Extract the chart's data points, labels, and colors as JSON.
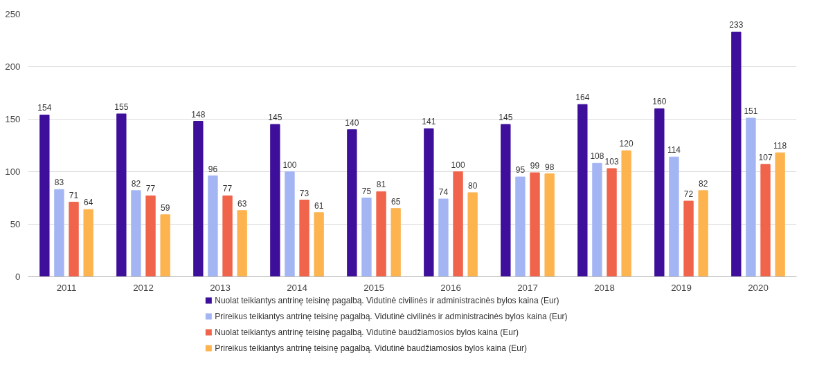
{
  "chart_data": {
    "type": "bar",
    "categories": [
      "2011",
      "2012",
      "2013",
      "2014",
      "2015",
      "2016",
      "2017",
      "2018",
      "2019",
      "2020"
    ],
    "series": [
      {
        "name": "Nuolat teikiantys antrinę teisinę pagalbą. Vidutinė civilinės ir administracinės bylos kaina (Eur)",
        "color": "#3e0f9a",
        "values": [
          154,
          155,
          148,
          145,
          140,
          141,
          145,
          164,
          160,
          233
        ]
      },
      {
        "name": "Prireikus teikiantys antrinę teisinę pagalbą. Vidutinė civilinės ir administracinės bylos kaina (Eur)",
        "color": "#a4b5f4",
        "values": [
          83,
          82,
          96,
          100,
          75,
          74,
          95,
          108,
          114,
          151
        ]
      },
      {
        "name": "Nuolat teikiantys antrinę teisinę pagalbą. Vidutinė baudžiamosios bylos kaina (Eur)",
        "color": "#f0644b",
        "values": [
          71,
          77,
          77,
          73,
          81,
          100,
          99,
          103,
          72,
          107
        ]
      },
      {
        "name": "Prireikus teikiantys antrinę teisinę pagalbą. Vidutinė baudžiamosios bylos kaina (Eur)",
        "color": "#fdb44f",
        "values": [
          64,
          59,
          63,
          61,
          65,
          80,
          98,
          120,
          82,
          118
        ]
      }
    ],
    "ylim": [
      0,
      250
    ],
    "yticks": [
      0,
      50,
      100,
      150,
      200,
      250
    ],
    "grid": "y",
    "legend": "bottom",
    "data_labels": true
  }
}
